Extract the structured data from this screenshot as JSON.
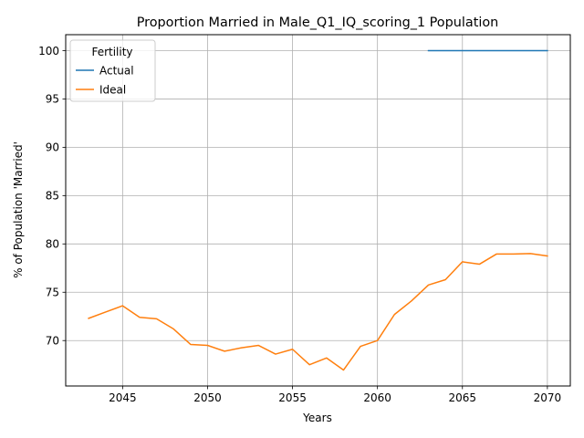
{
  "chart_data": {
    "type": "line",
    "title": "Proportion Married in Male_Q1_IQ_scoring_1 Population",
    "xlabel": "Years",
    "ylabel": "% of Population 'Married'",
    "xlim": [
      2041.65,
      2071.35
    ],
    "ylim": [
      65.3,
      101.65
    ],
    "xticks": [
      2045,
      2050,
      2055,
      2060,
      2065,
      2070
    ],
    "yticks": [
      70,
      75,
      80,
      85,
      90,
      95,
      100
    ],
    "grid": true,
    "legend": {
      "title": "Fertility",
      "placement": "top-left"
    },
    "series": [
      {
        "name": "Actual",
        "color": "#1f77b4",
        "x": [
          2063,
          2064,
          2065,
          2066,
          2067,
          2068,
          2069,
          2070
        ],
        "y": [
          100,
          100,
          100,
          100,
          100,
          100,
          100,
          100
        ]
      },
      {
        "name": "Ideal",
        "color": "#ff7f0e",
        "x": [
          2043,
          2044,
          2045,
          2046,
          2047,
          2048,
          2049,
          2050,
          2051,
          2052,
          2053,
          2054,
          2055,
          2056,
          2057,
          2058,
          2059,
          2060,
          2061,
          2062,
          2063,
          2064,
          2065,
          2066,
          2067,
          2068,
          2069,
          2070
        ],
        "y": [
          72.3,
          72.95,
          73.6,
          72.4,
          72.25,
          71.2,
          69.6,
          69.5,
          68.9,
          69.25,
          69.5,
          68.6,
          69.1,
          67.5,
          68.2,
          66.95,
          69.4,
          70.0,
          72.7,
          74.1,
          75.75,
          76.3,
          78.15,
          77.9,
          78.95,
          78.95,
          79.0,
          78.75
        ]
      }
    ]
  }
}
